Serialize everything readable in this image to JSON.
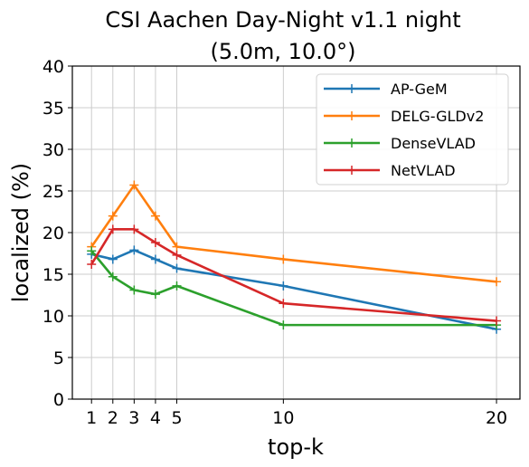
{
  "chart_data": {
    "type": "line",
    "title_line1": "CSI Aachen Day-Night v1.1 night",
    "title_line2": "(5.0m, 10.0°)",
    "xlabel": "top-k",
    "ylabel": "localized (%)",
    "x": [
      1,
      2,
      3,
      4,
      5,
      10,
      20
    ],
    "x_ticks": [
      "1",
      "2",
      "3",
      "4",
      "5",
      "10",
      "20"
    ],
    "y_ticks": [
      "0",
      "5",
      "10",
      "15",
      "20",
      "25",
      "30",
      "35",
      "40"
    ],
    "ylim": [
      0,
      40
    ],
    "xlim": [
      0.1,
      21.1
    ],
    "grid": true,
    "legend_position": "top-right",
    "series": [
      {
        "name": "AP-GeM",
        "color": "#1f77b4",
        "values": [
          17.4,
          16.8,
          17.9,
          16.8,
          15.7,
          13.6,
          8.4
        ]
      },
      {
        "name": "DELG-GLDv2",
        "color": "#ff7f0e",
        "values": [
          18.3,
          22.0,
          25.7,
          22.0,
          18.3,
          16.8,
          14.1
        ]
      },
      {
        "name": "DenseVLAD",
        "color": "#2ca02c",
        "values": [
          17.8,
          14.7,
          13.1,
          12.6,
          13.6,
          8.9,
          8.9
        ]
      },
      {
        "name": "NetVLAD",
        "color": "#d62728",
        "values": [
          16.2,
          20.4,
          20.4,
          18.8,
          17.3,
          11.5,
          9.4
        ]
      }
    ]
  }
}
